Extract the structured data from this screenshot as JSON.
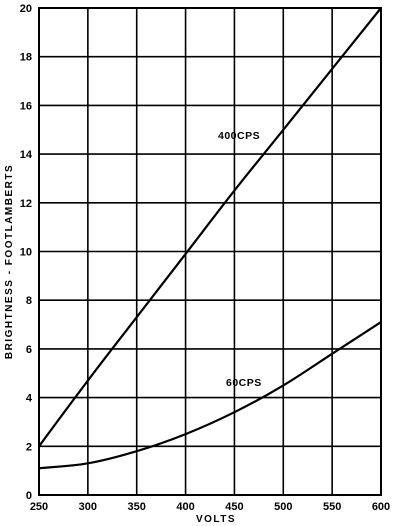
{
  "chart_data": {
    "type": "line",
    "xlabel": "VOLTS",
    "ylabel": "BRIGHTNESS - FOOTLAMBERTS",
    "xlim": [
      250,
      600
    ],
    "ylim": [
      0,
      20
    ],
    "x_ticks": [
      "250",
      "300",
      "350",
      "400",
      "450",
      "500",
      "550",
      "600"
    ],
    "y_ticks": [
      "0",
      "2",
      "4",
      "6",
      "8",
      "10",
      "12",
      "14",
      "16",
      "18",
      "20"
    ],
    "grid": true,
    "series": [
      {
        "name": "400CPS",
        "x": [
          250,
          300,
          350,
          400,
          450,
          500,
          550,
          600
        ],
        "y": [
          2.0,
          4.7,
          7.3,
          9.9,
          12.5,
          15.0,
          17.5,
          20.0
        ]
      },
      {
        "name": "60CPS",
        "x": [
          250,
          300,
          350,
          400,
          450,
          500,
          550,
          600
        ],
        "y": [
          1.1,
          1.3,
          1.8,
          2.5,
          3.4,
          4.5,
          5.8,
          7.1
        ]
      }
    ],
    "colors": {
      "line": "#000000",
      "grid": "#000000",
      "background": "#ffffff"
    }
  }
}
